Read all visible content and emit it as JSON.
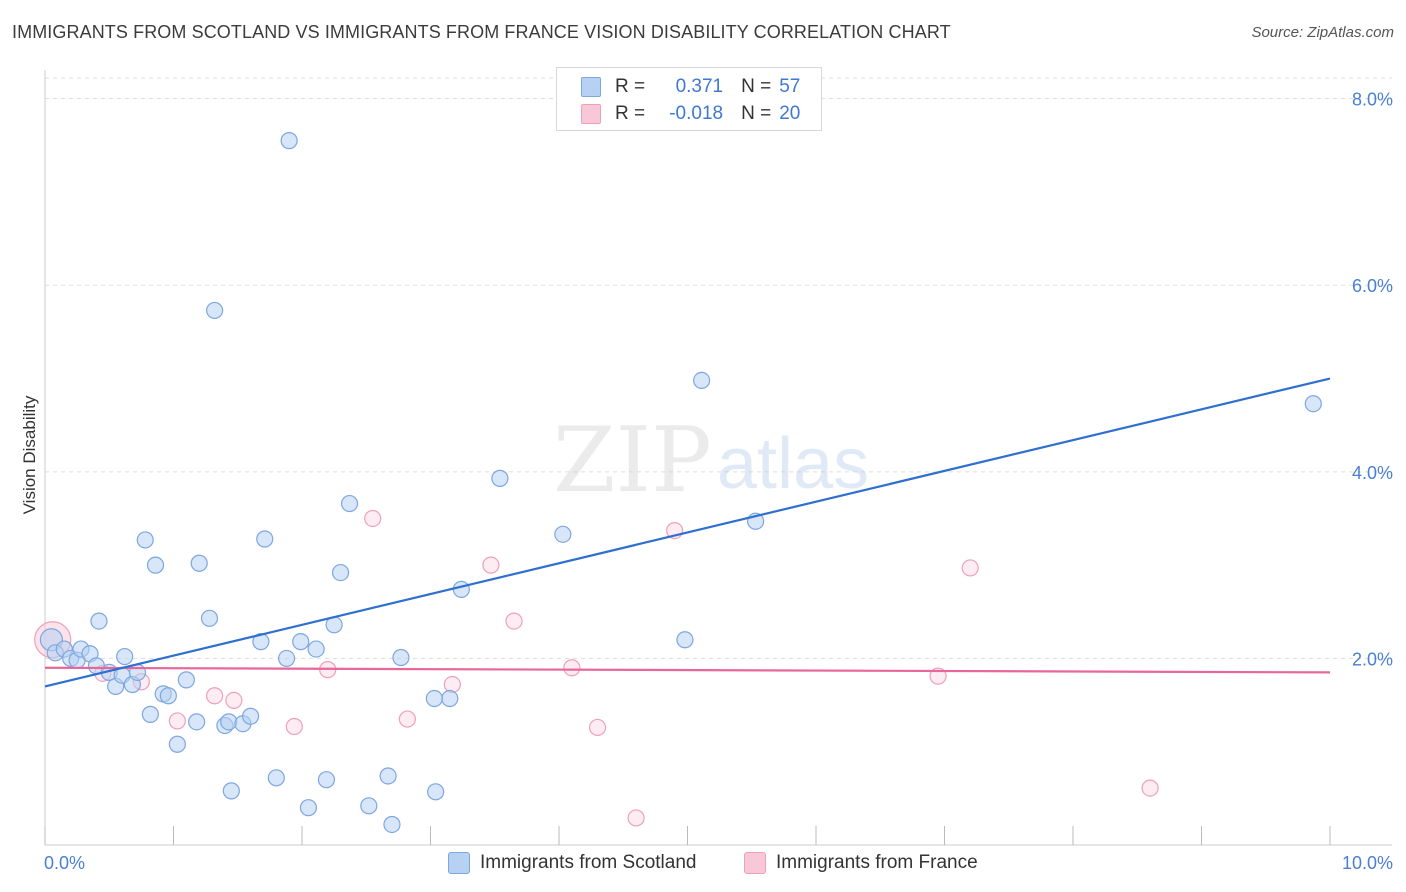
{
  "title": "IMMIGRANTS FROM SCOTLAND VS IMMIGRANTS FROM FRANCE VISION DISABILITY CORRELATION CHART",
  "source": "Source: ZipAtlas.com",
  "watermark": {
    "zip": "ZIP",
    "atlas": "atlas"
  },
  "legend": {
    "scotland": {
      "r_label": "R =",
      "r_value": "0.371",
      "n_label": "N =",
      "n_value": "57"
    },
    "france": {
      "r_label": "R =",
      "r_value": "-0.018",
      "n_label": "N =",
      "n_value": "20"
    }
  },
  "colors": {
    "scotland_fill": "#b7d1f3",
    "scotland_stroke": "#7ea6e0",
    "scotland_line": "#2f6fd1",
    "france_fill": "#f8c8d8",
    "france_stroke": "#eea0bb",
    "france_line": "#e8669a",
    "tick": "#4a7fd4",
    "grid": "#dddddd"
  },
  "chart_data": {
    "type": "scatter",
    "title": "IMMIGRANTS FROM SCOTLAND VS IMMIGRANTS FROM FRANCE VISION DISABILITY CORRELATION CHART",
    "xlabel": "",
    "ylabel": "Vision Disability",
    "xlim": [
      0,
      10
    ],
    "ylim": [
      0,
      8.2
    ],
    "x_tick_labels": [
      "0.0%",
      "10.0%"
    ],
    "y_ticks": [
      2,
      4,
      6,
      8
    ],
    "y_tick_labels": [
      "2.0%",
      "4.0%",
      "6.0%",
      "8.0%"
    ],
    "series": [
      {
        "name": "Immigrants from Scotland",
        "points": [
          [
            0.05,
            2.2
          ],
          [
            0.08,
            2.06
          ],
          [
            0.15,
            2.1
          ],
          [
            0.2,
            2.0
          ],
          [
            0.25,
            1.98
          ],
          [
            0.28,
            2.1
          ],
          [
            0.35,
            2.05
          ],
          [
            0.4,
            1.92
          ],
          [
            0.42,
            2.4
          ],
          [
            0.5,
            1.85
          ],
          [
            0.55,
            1.7
          ],
          [
            0.6,
            1.82
          ],
          [
            0.62,
            2.02
          ],
          [
            0.68,
            1.72
          ],
          [
            0.72,
            1.85
          ],
          [
            0.78,
            3.27
          ],
          [
            0.82,
            1.4
          ],
          [
            0.86,
            3.0
          ],
          [
            0.92,
            1.62
          ],
          [
            0.96,
            1.6
          ],
          [
            1.03,
            1.08
          ],
          [
            1.1,
            1.77
          ],
          [
            1.18,
            1.32
          ],
          [
            1.2,
            3.02
          ],
          [
            1.28,
            2.43
          ],
          [
            1.32,
            5.73
          ],
          [
            1.4,
            1.28
          ],
          [
            1.43,
            1.32
          ],
          [
            1.45,
            0.58
          ],
          [
            1.54,
            1.3
          ],
          [
            1.6,
            1.38
          ],
          [
            1.68,
            2.18
          ],
          [
            1.71,
            3.28
          ],
          [
            1.8,
            0.72
          ],
          [
            1.88,
            2.0
          ],
          [
            1.9,
            7.55
          ],
          [
            1.99,
            2.18
          ],
          [
            2.05,
            0.4
          ],
          [
            2.11,
            2.1
          ],
          [
            2.19,
            0.7
          ],
          [
            2.25,
            2.36
          ],
          [
            2.3,
            2.92
          ],
          [
            2.37,
            3.66
          ],
          [
            2.52,
            0.42
          ],
          [
            2.67,
            0.74
          ],
          [
            2.7,
            0.22
          ],
          [
            2.77,
            2.01
          ],
          [
            3.04,
            0.57
          ],
          [
            3.15,
            1.57
          ],
          [
            3.24,
            2.74
          ],
          [
            3.54,
            3.93
          ],
          [
            4.03,
            3.33
          ],
          [
            4.98,
            2.2
          ],
          [
            5.11,
            4.98
          ],
          [
            5.53,
            3.47
          ],
          [
            9.87,
            4.73
          ],
          [
            3.03,
            1.57
          ]
        ]
      },
      {
        "name": "Immigrants from France",
        "points": [
          [
            0.06,
            2.2
          ],
          [
            0.45,
            1.84
          ],
          [
            0.75,
            1.75
          ],
          [
            1.03,
            1.33
          ],
          [
            1.32,
            1.6
          ],
          [
            1.47,
            1.55
          ],
          [
            1.94,
            1.27
          ],
          [
            2.2,
            1.88
          ],
          [
            2.55,
            3.5
          ],
          [
            2.82,
            1.35
          ],
          [
            3.17,
            1.72
          ],
          [
            3.47,
            3.0
          ],
          [
            3.65,
            2.4
          ],
          [
            4.1,
            1.9
          ],
          [
            4.3,
            1.26
          ],
          [
            4.6,
            0.29
          ],
          [
            4.9,
            3.37
          ],
          [
            6.95,
            1.81
          ],
          [
            7.2,
            2.97
          ],
          [
            8.6,
            0.61
          ]
        ]
      }
    ],
    "trend_lines": [
      {
        "series": "Immigrants from Scotland",
        "x": [
          0,
          10
        ],
        "y": [
          1.7,
          5.0
        ]
      },
      {
        "series": "Immigrants from France",
        "x": [
          0,
          10
        ],
        "y": [
          1.9,
          1.85
        ]
      }
    ],
    "legend_entries": [
      "Immigrants from Scotland",
      "Immigrants from France"
    ]
  }
}
